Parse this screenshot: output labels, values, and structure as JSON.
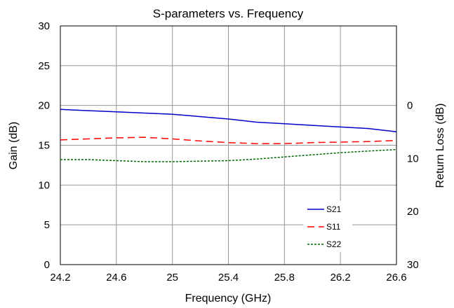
{
  "chart_data": {
    "type": "line",
    "title": "S-parameters vs. Frequency",
    "xlabel": "Frequency (GHz)",
    "ylabel": "Gain (dB)",
    "y2label": "Return Loss (dB)",
    "xlim": [
      24.2,
      26.6
    ],
    "ylim": [
      0,
      30
    ],
    "y2lim": [
      -15,
      30
    ],
    "y2_inverted": true,
    "x_ticks": [
      "24.2",
      "24.6",
      "25",
      "25.4",
      "25.8",
      "26.2",
      "26.6"
    ],
    "y_ticks": [
      "0",
      "5",
      "10",
      "15",
      "20",
      "25",
      "30"
    ],
    "y2_ticks": [
      "0",
      "10",
      "20",
      "30"
    ],
    "grid": true,
    "legend_position": "lower-right",
    "series": [
      {
        "name": "S21",
        "axis": "left",
        "color": "#0000CC",
        "dash": "solid",
        "x": [
          24.2,
          24.4,
          24.6,
          24.8,
          25.0,
          25.2,
          25.4,
          25.6,
          25.8,
          26.0,
          26.2,
          26.4,
          26.6
        ],
        "values": [
          19.5,
          19.35,
          19.2,
          19.05,
          18.9,
          18.6,
          18.3,
          17.9,
          17.7,
          17.5,
          17.3,
          17.1,
          16.7
        ]
      },
      {
        "name": "S11",
        "axis": "right",
        "color": "#FF0000",
        "dash": "long-dash",
        "x": [
          24.2,
          24.4,
          24.6,
          24.8,
          25.0,
          25.2,
          25.4,
          25.6,
          25.8,
          26.0,
          26.2,
          26.4,
          26.6
        ],
        "values": [
          6.5,
          6.3,
          6.1,
          6.0,
          6.3,
          6.7,
          7.0,
          7.2,
          7.2,
          7.0,
          6.9,
          6.8,
          6.6
        ]
      },
      {
        "name": "S22",
        "axis": "right",
        "color": "#006600",
        "dash": "short-dash",
        "x": [
          24.2,
          24.4,
          24.6,
          24.8,
          25.0,
          25.2,
          25.4,
          25.6,
          25.8,
          26.0,
          26.2,
          26.4,
          26.6
        ],
        "values": [
          10.2,
          10.2,
          10.4,
          10.6,
          10.6,
          10.5,
          10.4,
          10.1,
          9.7,
          9.3,
          8.9,
          8.6,
          8.3
        ]
      }
    ]
  }
}
